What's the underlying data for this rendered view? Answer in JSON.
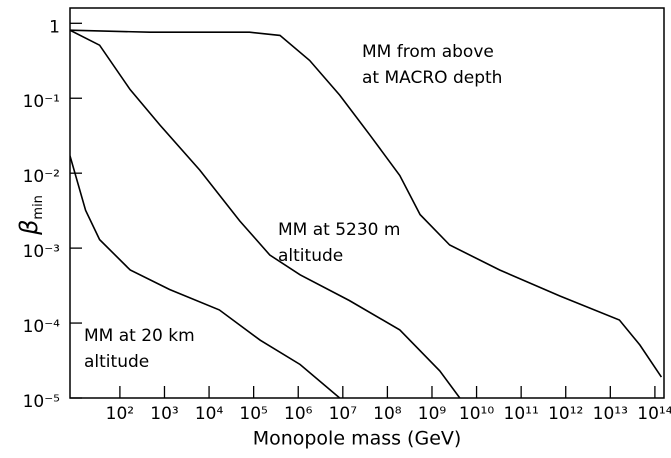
{
  "chart_data": {
    "type": "line",
    "x_label": "Monopole mass (GeV)",
    "y_label": "β",
    "y_label_sub": "min",
    "log_x": true,
    "log_y": true,
    "xlim": [
      7.6,
      160000000000000.0
    ],
    "ylim": [
      1e-05,
      1.6
    ],
    "xticks": [
      {
        "value": 100,
        "label": "10²"
      },
      {
        "value": 1000,
        "label": "10³"
      },
      {
        "value": 10000,
        "label": "10⁴"
      },
      {
        "value": 100000,
        "label": "10⁵"
      },
      {
        "value": 1000000,
        "label": "10⁶"
      },
      {
        "value": 10000000,
        "label": "10⁷"
      },
      {
        "value": 100000000,
        "label": "10⁸"
      },
      {
        "value": 1000000000,
        "label": "10⁹"
      },
      {
        "value": 10000000000,
        "label": "10¹⁰"
      },
      {
        "value": 100000000000,
        "label": "10¹¹"
      },
      {
        "value": 1000000000000,
        "label": "10¹²"
      },
      {
        "value": 10000000000000,
        "label": "10¹³"
      },
      {
        "value": 100000000000000,
        "label": "10¹⁴"
      }
    ],
    "yticks": [
      {
        "value": 1e-05,
        "label": "10⁻⁵"
      },
      {
        "value": 0.0001,
        "label": "10⁻⁴"
      },
      {
        "value": 0.001,
        "label": "10⁻³"
      },
      {
        "value": 0.01,
        "label": "10⁻²"
      },
      {
        "value": 0.1,
        "label": "10⁻¹"
      },
      1
    ],
    "annotations": [
      [
        "MM from above",
        "at MACRO depth"
      ],
      [
        "MM at 5230 m",
        "altitude"
      ],
      [
        "MM at 20 km",
        "altitude"
      ]
    ],
    "series": [
      {
        "color": "#000000",
        "x": [
          7.6,
          470,
          81000,
          390000,
          1800000.0,
          8500000.0,
          41000000.0,
          190000000.0,
          540000000.0,
          2500000000.0,
          33000000000.0,
          740000000000.0,
          16000000000000.0,
          46000000000000.0,
          140000000000000.0
        ],
        "values": [
          0.81,
          0.76,
          0.76,
          0.69,
          0.32,
          0.11,
          0.032,
          0.0093,
          0.0028,
          0.0011,
          0.00051,
          0.00023,
          0.00011,
          5.1e-05,
          1.9e-05
        ]
      },
      {
        "color": "#000000",
        "x": [
          7.6,
          35,
          170,
          790,
          6200,
          49000,
          230000,
          1100000.0,
          14000000.0,
          190000000.0,
          1500000000.0,
          4200000000.0
        ],
        "values": [
          0.81,
          0.51,
          0.13,
          0.044,
          0.011,
          0.0023,
          0.00081,
          0.00044,
          0.0002,
          8.1e-05,
          2.3e-05,
          1e-05
        ]
      },
      {
        "color": "#000000",
        "x": [
          7.6,
          17,
          35,
          170,
          1300,
          17000,
          140000,
          1100000.0,
          8500000.0
        ],
        "values": [
          0.017,
          0.0032,
          0.0013,
          0.00051,
          0.00028,
          0.00015,
          5.9e-05,
          2.8e-05,
          1e-05
        ]
      }
    ]
  }
}
